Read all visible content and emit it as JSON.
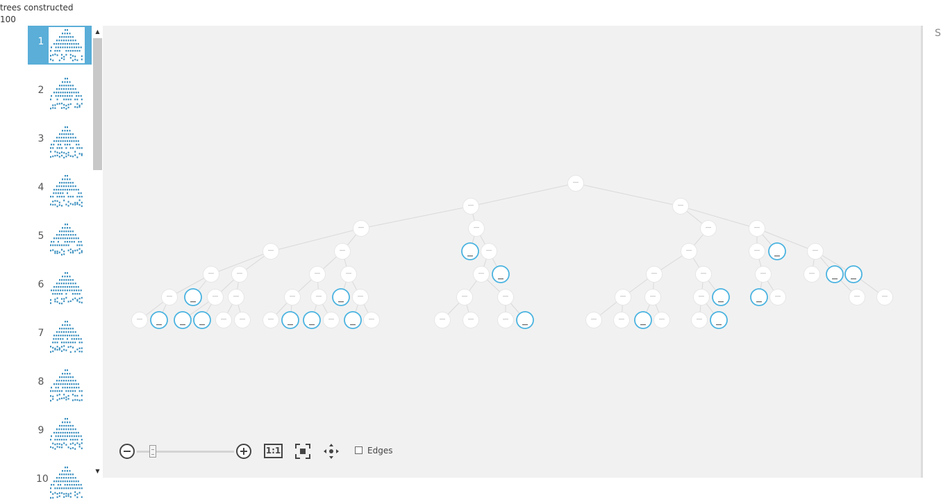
{
  "header": {
    "label": "trees constructed",
    "value": "100"
  },
  "colors": {
    "selected": "#5aaed8",
    "leaf": "#4ab3e0",
    "canvas": "#f1f1f1",
    "edge": "#d9d9d9"
  },
  "thumbnails": [
    {
      "label": "1",
      "selected": true
    },
    {
      "label": "2"
    },
    {
      "label": "3"
    },
    {
      "label": "4"
    },
    {
      "label": "5"
    },
    {
      "label": "6"
    },
    {
      "label": "7"
    },
    {
      "label": "8"
    },
    {
      "label": "9"
    },
    {
      "label": "10"
    }
  ],
  "toolbar": {
    "zoom_out_icon": "minus-circle-icon",
    "zoom_in_icon": "plus-circle-icon",
    "actual_size_label": "1:1",
    "fit_icon": "fit-to-screen-icon",
    "pan_icon": "pan-arrows-icon",
    "edges_label": "Edges",
    "edges_checked": false
  },
  "right_edge_char": "S"
}
